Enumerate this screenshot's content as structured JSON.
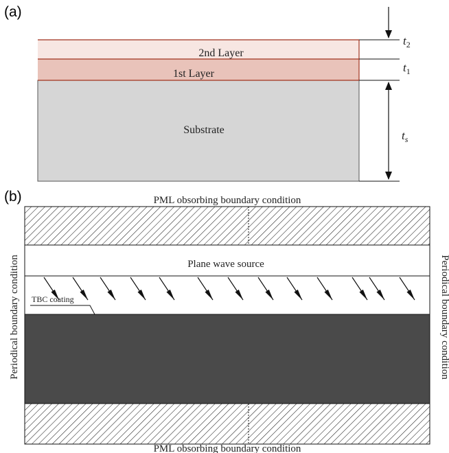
{
  "panel_a": {
    "label": "(a)",
    "layers": [
      {
        "name": "2nd Layer",
        "fill": "#f7e6e2"
      },
      {
        "name": "1st Layer",
        "fill": "#e9c3ba"
      },
      {
        "name": "Substrate",
        "fill": "#d6d6d6"
      }
    ],
    "layer_border_color": "#a0321e",
    "thickness_labels": {
      "t2": "t",
      "t2_sub": "2",
      "t1": "t",
      "t1_sub": "1",
      "ts": "t",
      "ts_sub": "s"
    }
  },
  "panel_b": {
    "label": "(b)",
    "top_boundary": "PML obsorbing boundary condition",
    "bottom_boundary": "PML obsorbing boundary condition",
    "left_boundary": "Periodical boundary condition",
    "right_boundary": "Periodical boundary condition",
    "source_label": "Plane wave source",
    "coating_label": "TBC coating",
    "substrate_color": "#4a4a4a"
  }
}
